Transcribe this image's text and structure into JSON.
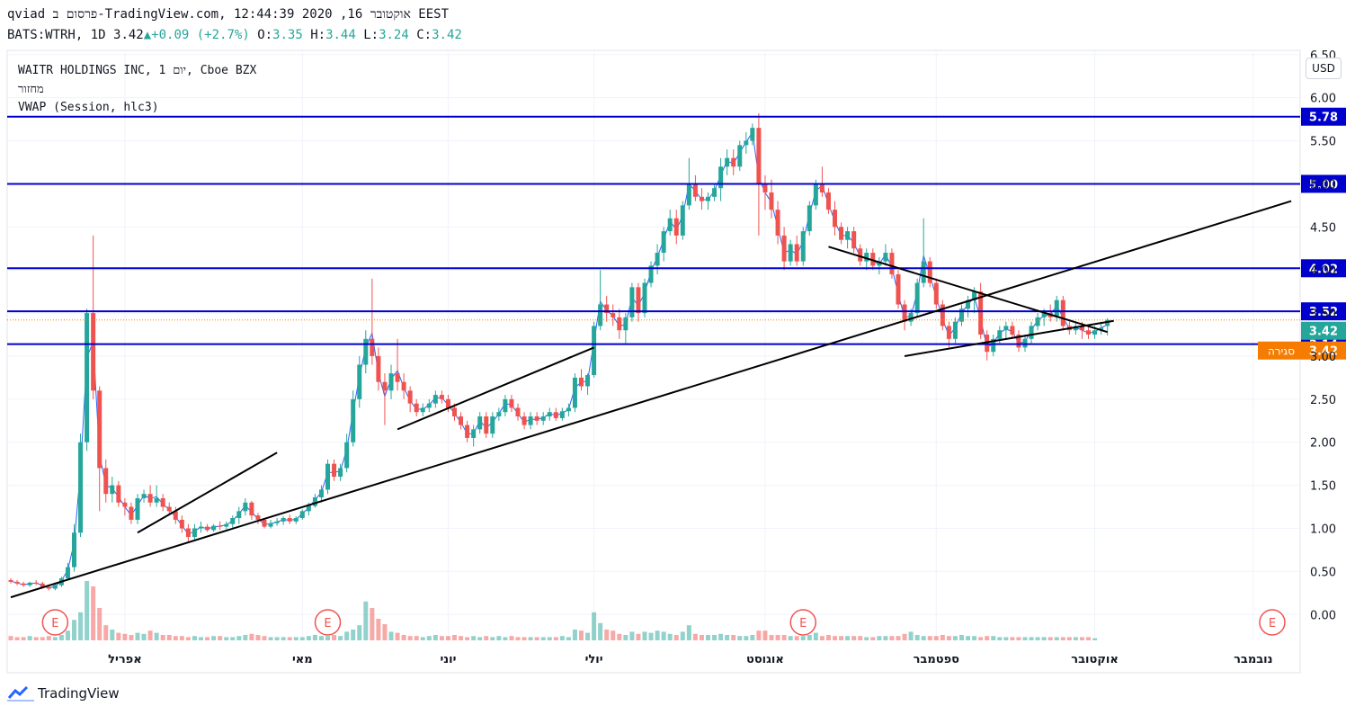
{
  "header": {
    "line1": "qviad פרסום ב-TradingView.com, אוקטובר 16, 2020 12:44:39 EEST",
    "symbol": "BATS:WTRH, 1D",
    "last": "3.42",
    "change": "+0.09 (+2.7%)",
    "ohlc": {
      "o_label": "O:",
      "o": "3.35",
      "h_label": "H:",
      "h": "3.44",
      "l_label": "L:",
      "l": "3.24",
      "c_label": "C:",
      "c": "3.42"
    }
  },
  "legend": {
    "title": "WAITR HOLDINGS INC, 1 יום, Cboe BZX",
    "volume_label": "מחזור",
    "vwap_label": "VWAP (Session, hlc3)"
  },
  "currency_button": "USD",
  "brand": "TradingView",
  "colors": {
    "up": "#26a69a",
    "down": "#ef5350",
    "level_line": "#0000cc",
    "trendline": "#000000",
    "vwap": "#2962ff",
    "countdown": "#f57c00",
    "current": "#26a69a"
  },
  "chart_data": {
    "type": "candlestick",
    "title": "WAITR HOLDINGS INC, 1 יום, Cboe BZX",
    "y_ticks": [
      "0.00",
      "0.50",
      "1.00",
      "1.50",
      "2.00",
      "2.50",
      "3.00",
      "3.50",
      "4.00",
      "4.50",
      "5.00",
      "5.50",
      "6.00",
      "6.50"
    ],
    "ylim": [
      -0.3,
      6.55
    ],
    "x_ticks": [
      "אפריל",
      "מאי",
      "יוני",
      "יולי",
      "אוגוסט",
      "ספטמבר",
      "אוקטובר",
      "נובמבר"
    ],
    "horizontal_levels": [
      "5.78",
      "5.00",
      "4.02",
      "3.52",
      "3.14"
    ],
    "price_labels": {
      "current": "3.42",
      "countdown_label": "סגירה",
      "countdown": "3.42"
    },
    "earnings_marker": "E",
    "grid": true,
    "candles": [
      [
        0.4,
        0.42,
        0.36,
        0.38
      ],
      [
        0.38,
        0.4,
        0.34,
        0.36
      ],
      [
        0.36,
        0.38,
        0.32,
        0.34
      ],
      [
        0.34,
        0.38,
        0.32,
        0.37
      ],
      [
        0.37,
        0.4,
        0.34,
        0.36
      ],
      [
        0.36,
        0.38,
        0.3,
        0.32
      ],
      [
        0.32,
        0.34,
        0.28,
        0.3
      ],
      [
        0.3,
        0.36,
        0.28,
        0.34
      ],
      [
        0.34,
        0.44,
        0.32,
        0.42
      ],
      [
        0.42,
        0.6,
        0.4,
        0.55
      ],
      [
        0.55,
        1.05,
        0.5,
        0.95
      ],
      [
        0.95,
        2.1,
        0.9,
        2.0
      ],
      [
        2.0,
        3.55,
        1.9,
        3.5
      ],
      [
        3.5,
        4.4,
        2.5,
        2.6
      ],
      [
        2.6,
        2.65,
        1.2,
        1.7
      ],
      [
        1.7,
        1.8,
        1.3,
        1.4
      ],
      [
        1.4,
        1.6,
        1.3,
        1.5
      ],
      [
        1.5,
        1.55,
        1.25,
        1.3
      ],
      [
        1.3,
        1.35,
        1.15,
        1.25
      ],
      [
        1.25,
        1.3,
        1.05,
        1.1
      ],
      [
        1.1,
        1.4,
        1.05,
        1.35
      ],
      [
        1.35,
        1.45,
        1.3,
        1.4
      ],
      [
        1.4,
        1.5,
        1.25,
        1.3
      ],
      [
        1.3,
        1.5,
        1.25,
        1.35
      ],
      [
        1.35,
        1.4,
        1.2,
        1.25
      ],
      [
        1.25,
        1.3,
        1.15,
        1.2
      ],
      [
        1.2,
        1.25,
        1.05,
        1.1
      ],
      [
        1.1,
        1.15,
        0.95,
        1.0
      ],
      [
        1.0,
        1.05,
        0.85,
        0.9
      ],
      [
        0.9,
        1.05,
        0.85,
        1.0
      ],
      [
        1.0,
        1.08,
        0.95,
        1.02
      ],
      [
        1.02,
        1.05,
        0.96,
        0.98
      ],
      [
        0.98,
        1.05,
        0.96,
        1.03
      ],
      [
        1.03,
        1.08,
        0.98,
        1.02
      ],
      [
        1.02,
        1.08,
        0.99,
        1.05
      ],
      [
        1.05,
        1.15,
        1.0,
        1.12
      ],
      [
        1.12,
        1.25,
        1.05,
        1.2
      ],
      [
        1.2,
        1.35,
        1.15,
        1.3
      ],
      [
        1.3,
        1.32,
        1.1,
        1.15
      ],
      [
        1.15,
        1.18,
        1.05,
        1.1
      ],
      [
        1.1,
        1.12,
        1.0,
        1.02
      ],
      [
        1.02,
        1.1,
        1.0,
        1.06
      ],
      [
        1.06,
        1.12,
        1.03,
        1.08
      ],
      [
        1.08,
        1.14,
        1.04,
        1.12
      ],
      [
        1.12,
        1.16,
        1.05,
        1.08
      ],
      [
        1.08,
        1.14,
        1.05,
        1.12
      ],
      [
        1.12,
        1.22,
        1.1,
        1.2
      ],
      [
        1.2,
        1.3,
        1.15,
        1.26
      ],
      [
        1.26,
        1.4,
        1.24,
        1.36
      ],
      [
        1.36,
        1.5,
        1.3,
        1.45
      ],
      [
        1.45,
        1.8,
        1.4,
        1.75
      ],
      [
        1.75,
        1.8,
        1.55,
        1.6
      ],
      [
        1.6,
        1.75,
        1.55,
        1.7
      ],
      [
        1.7,
        2.1,
        1.65,
        2.0
      ],
      [
        2.0,
        2.6,
        1.95,
        2.5
      ],
      [
        2.5,
        3.0,
        2.4,
        2.9
      ],
      [
        2.9,
        3.3,
        2.8,
        3.2
      ],
      [
        3.2,
        3.9,
        2.9,
        3.0
      ],
      [
        3.0,
        3.1,
        2.6,
        2.7
      ],
      [
        2.7,
        2.8,
        2.2,
        2.6
      ],
      [
        2.6,
        2.9,
        2.5,
        2.8
      ],
      [
        2.8,
        3.2,
        2.6,
        2.7
      ],
      [
        2.7,
        2.8,
        2.5,
        2.6
      ],
      [
        2.6,
        2.65,
        2.35,
        2.45
      ],
      [
        2.45,
        2.5,
        2.3,
        2.35
      ],
      [
        2.35,
        2.45,
        2.3,
        2.4
      ],
      [
        2.4,
        2.5,
        2.35,
        2.45
      ],
      [
        2.45,
        2.6,
        2.4,
        2.55
      ],
      [
        2.55,
        2.6,
        2.45,
        2.5
      ],
      [
        2.5,
        2.55,
        2.35,
        2.4
      ],
      [
        2.4,
        2.45,
        2.25,
        2.3
      ],
      [
        2.3,
        2.35,
        2.15,
        2.2
      ],
      [
        2.2,
        2.25,
        2.0,
        2.05
      ],
      [
        2.05,
        2.2,
        1.95,
        2.15
      ],
      [
        2.15,
        2.35,
        2.1,
        2.3
      ],
      [
        2.3,
        2.35,
        2.05,
        2.1
      ],
      [
        2.1,
        2.35,
        2.05,
        2.3
      ],
      [
        2.3,
        2.4,
        2.25,
        2.35
      ],
      [
        2.35,
        2.55,
        2.3,
        2.5
      ],
      [
        2.5,
        2.55,
        2.35,
        2.4
      ],
      [
        2.4,
        2.45,
        2.25,
        2.3
      ],
      [
        2.3,
        2.35,
        2.15,
        2.2
      ],
      [
        2.2,
        2.35,
        2.15,
        2.3
      ],
      [
        2.3,
        2.35,
        2.2,
        2.25
      ],
      [
        2.25,
        2.35,
        2.2,
        2.3
      ],
      [
        2.3,
        2.4,
        2.25,
        2.35
      ],
      [
        2.35,
        2.4,
        2.25,
        2.28
      ],
      [
        2.28,
        2.4,
        2.25,
        2.36
      ],
      [
        2.36,
        2.45,
        2.3,
        2.4
      ],
      [
        2.4,
        2.8,
        2.35,
        2.75
      ],
      [
        2.75,
        2.85,
        2.6,
        2.65
      ],
      [
        2.65,
        2.8,
        2.55,
        2.78
      ],
      [
        2.78,
        3.4,
        2.75,
        3.35
      ],
      [
        3.35,
        4.0,
        3.3,
        3.6
      ],
      [
        3.6,
        3.7,
        3.4,
        3.5
      ],
      [
        3.5,
        3.6,
        3.35,
        3.45
      ],
      [
        3.45,
        3.55,
        3.2,
        3.3
      ],
      [
        3.3,
        3.5,
        3.15,
        3.45
      ],
      [
        3.45,
        3.85,
        3.4,
        3.8
      ],
      [
        3.8,
        3.85,
        3.4,
        3.5
      ],
      [
        3.5,
        3.9,
        3.45,
        3.85
      ],
      [
        3.85,
        4.1,
        3.8,
        4.05
      ],
      [
        4.05,
        4.3,
        3.95,
        4.2
      ],
      [
        4.2,
        4.5,
        4.1,
        4.45
      ],
      [
        4.45,
        4.7,
        4.4,
        4.6
      ],
      [
        4.6,
        4.7,
        4.3,
        4.4
      ],
      [
        4.4,
        4.8,
        4.35,
        4.75
      ],
      [
        4.75,
        5.3,
        4.7,
        5.0
      ],
      [
        5.0,
        5.1,
        4.8,
        4.85
      ],
      [
        4.85,
        4.95,
        4.7,
        4.8
      ],
      [
        4.8,
        4.9,
        4.7,
        4.85
      ],
      [
        4.85,
        5.0,
        4.8,
        4.95
      ],
      [
        4.95,
        5.3,
        4.8,
        5.2
      ],
      [
        5.2,
        5.4,
        5.1,
        5.3
      ],
      [
        5.3,
        5.4,
        5.1,
        5.2
      ],
      [
        5.2,
        5.5,
        5.15,
        5.45
      ],
      [
        5.45,
        5.6,
        5.35,
        5.5
      ],
      [
        5.5,
        5.7,
        5.45,
        5.65
      ],
      [
        5.65,
        5.82,
        4.4,
        5.0
      ],
      [
        5.0,
        5.1,
        4.7,
        4.9
      ],
      [
        4.9,
        5.05,
        4.6,
        4.7
      ],
      [
        4.7,
        4.8,
        4.3,
        4.4
      ],
      [
        4.4,
        4.5,
        4.0,
        4.1
      ],
      [
        4.1,
        4.35,
        4.05,
        4.3
      ],
      [
        4.3,
        4.4,
        4.05,
        4.1
      ],
      [
        4.1,
        4.5,
        4.05,
        4.45
      ],
      [
        4.45,
        4.8,
        4.4,
        4.75
      ],
      [
        4.75,
        5.05,
        4.7,
        5.0
      ],
      [
        5.0,
        5.2,
        4.85,
        4.9
      ],
      [
        4.9,
        4.95,
        4.65,
        4.7
      ],
      [
        4.7,
        4.8,
        4.4,
        4.5
      ],
      [
        4.5,
        4.55,
        4.3,
        4.35
      ],
      [
        4.35,
        4.5,
        4.25,
        4.45
      ],
      [
        4.45,
        4.5,
        4.2,
        4.25
      ],
      [
        4.25,
        4.3,
        4.05,
        4.1
      ],
      [
        4.1,
        4.25,
        4.0,
        4.2
      ],
      [
        4.2,
        4.25,
        4.0,
        4.05
      ],
      [
        4.05,
        4.15,
        3.95,
        4.1
      ],
      [
        4.1,
        4.3,
        4.05,
        4.2
      ],
      [
        4.2,
        4.25,
        3.9,
        3.95
      ],
      [
        3.95,
        4.0,
        3.55,
        3.6
      ],
      [
        3.6,
        3.65,
        3.3,
        3.4
      ],
      [
        3.4,
        3.55,
        3.35,
        3.5
      ],
      [
        3.5,
        3.9,
        3.45,
        3.85
      ],
      [
        3.85,
        4.6,
        3.8,
        4.1
      ],
      [
        4.1,
        4.15,
        3.8,
        3.85
      ],
      [
        3.85,
        3.9,
        3.55,
        3.6
      ],
      [
        3.6,
        3.65,
        3.3,
        3.35
      ],
      [
        3.35,
        3.4,
        3.1,
        3.2
      ],
      [
        3.2,
        3.45,
        3.15,
        3.4
      ],
      [
        3.4,
        3.6,
        3.35,
        3.55
      ],
      [
        3.55,
        3.7,
        3.45,
        3.65
      ],
      [
        3.65,
        3.8,
        3.5,
        3.75
      ],
      [
        3.75,
        3.85,
        3.2,
        3.25
      ],
      [
        3.25,
        3.3,
        2.95,
        3.05
      ],
      [
        3.05,
        3.25,
        3.0,
        3.2
      ],
      [
        3.2,
        3.35,
        3.15,
        3.3
      ],
      [
        3.3,
        3.4,
        3.2,
        3.35
      ],
      [
        3.35,
        3.4,
        3.2,
        3.25
      ],
      [
        3.25,
        3.3,
        3.05,
        3.1
      ],
      [
        3.1,
        3.25,
        3.05,
        3.2
      ],
      [
        3.2,
        3.4,
        3.15,
        3.35
      ],
      [
        3.35,
        3.5,
        3.3,
        3.45
      ],
      [
        3.45,
        3.55,
        3.35,
        3.5
      ],
      [
        3.5,
        3.6,
        3.4,
        3.45
      ],
      [
        3.45,
        3.7,
        3.4,
        3.65
      ],
      [
        3.65,
        3.7,
        3.3,
        3.35
      ],
      [
        3.35,
        3.4,
        3.25,
        3.3
      ],
      [
        3.3,
        3.4,
        3.25,
        3.35
      ],
      [
        3.35,
        3.4,
        3.2,
        3.3
      ],
      [
        3.3,
        3.35,
        3.2,
        3.25
      ],
      [
        3.25,
        3.35,
        3.2,
        3.3
      ],
      [
        3.3,
        3.4,
        3.25,
        3.33
      ],
      [
        3.35,
        3.44,
        3.24,
        3.42
      ]
    ],
    "volume": [
      4,
      3,
      3,
      4,
      3,
      3,
      4,
      3,
      5,
      9,
      19,
      26,
      55,
      50,
      30,
      14,
      10,
      7,
      6,
      5,
      7,
      6,
      9,
      7,
      5,
      5,
      4,
      4,
      3,
      4,
      3,
      3,
      4,
      4,
      3,
      3,
      4,
      5,
      6,
      5,
      4,
      3,
      3,
      3,
      3,
      3,
      3,
      4,
      5,
      4,
      4,
      5,
      4,
      8,
      10,
      14,
      36,
      30,
      20,
      15,
      8,
      7,
      5,
      4,
      4,
      3,
      4,
      5,
      4,
      4,
      5,
      4,
      3,
      4,
      3,
      4,
      3,
      4,
      3,
      4,
      3,
      3,
      3,
      3,
      3,
      3,
      3,
      4,
      3,
      10,
      9,
      7,
      26,
      16,
      10,
      9,
      6,
      5,
      8,
      6,
      8,
      7,
      9,
      8,
      6,
      5,
      8,
      14,
      6,
      5,
      5,
      5,
      6,
      5,
      5,
      4,
      4,
      5,
      9,
      9,
      5,
      5,
      5,
      4,
      4,
      4,
      5,
      7,
      4,
      5,
      4,
      4,
      4,
      4,
      4,
      3,
      3,
      4,
      4,
      4,
      4,
      6,
      8,
      5,
      4,
      4,
      4,
      5,
      4,
      4,
      5,
      4,
      4,
      3,
      4,
      4,
      3,
      3,
      3,
      3,
      3,
      3,
      3,
      3,
      3,
      3,
      3,
      3,
      3,
      3,
      3,
      2
    ],
    "trendlines": [
      {
        "from": [
          0,
          0.2
        ],
        "to": [
          202,
          4.8
        ]
      },
      {
        "from": [
          20,
          0.95
        ],
        "to": [
          42,
          1.88
        ]
      },
      {
        "from": [
          61,
          2.15
        ],
        "to": [
          92,
          3.1
        ]
      },
      {
        "from": [
          129,
          4.27
        ],
        "to": [
          173,
          3.28
        ]
      },
      {
        "from": [
          141,
          3.0
        ],
        "to": [
          174,
          3.41
        ]
      }
    ]
  }
}
